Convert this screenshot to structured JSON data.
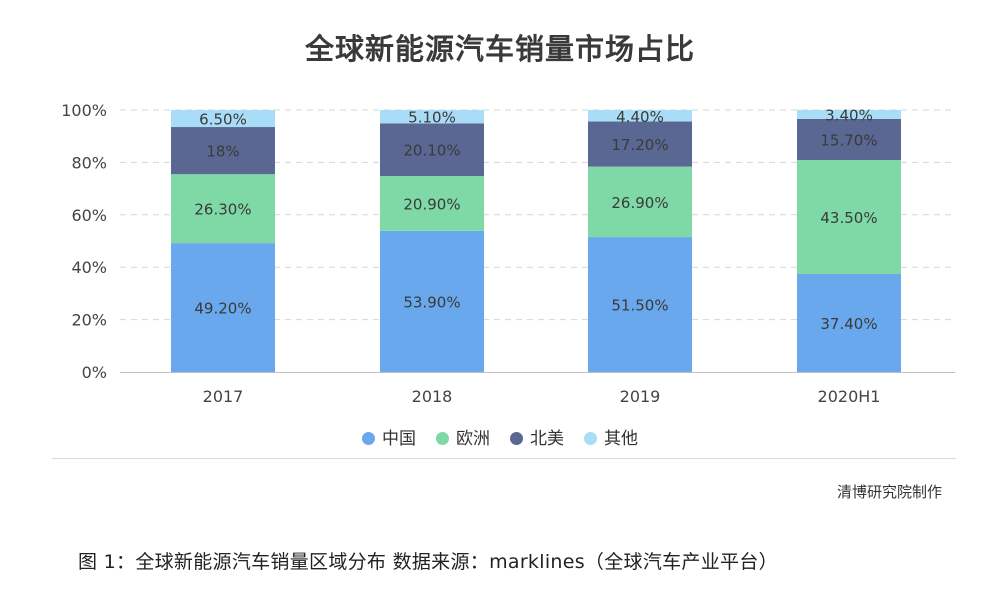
{
  "chart_data": {
    "type": "bar",
    "stacked": true,
    "title": "全球新能源汽车销量市场占比",
    "categories": [
      "2017",
      "2018",
      "2019",
      "2020H1"
    ],
    "series": [
      {
        "name": "中国",
        "color": "#6aa8ee",
        "values": [
          49.2,
          53.9,
          51.5,
          37.4
        ],
        "labels": [
          "49.20%",
          "53.90%",
          "51.50%",
          "37.40%"
        ]
      },
      {
        "name": "欧洲",
        "color": "#7ed9a6",
        "values": [
          26.3,
          20.9,
          26.9,
          43.5
        ],
        "labels": [
          "26.30%",
          "20.90%",
          "26.90%",
          "43.50%"
        ]
      },
      {
        "name": "北美",
        "color": "#5a6793",
        "values": [
          18,
          20.1,
          17.2,
          15.7
        ],
        "labels": [
          "18%",
          "20.10%",
          "17.20%",
          "15.70%"
        ]
      },
      {
        "name": "其他",
        "color": "#a9dcf6",
        "values": [
          6.5,
          5.1,
          4.4,
          3.4
        ],
        "labels": [
          "6.50%",
          "5.10%",
          "4.40%",
          "3.40%"
        ]
      }
    ],
    "yticks": [
      "0%",
      "20%",
      "40%",
      "60%",
      "80%",
      "100%"
    ],
    "ylim": [
      0,
      100
    ],
    "grid": true,
    "legend": "bottom"
  },
  "credit": "清博研究院制作",
  "caption": "图 1：全球新能源汽车销量区域分布  数据来源：marklines（全球汽车产业平台）"
}
